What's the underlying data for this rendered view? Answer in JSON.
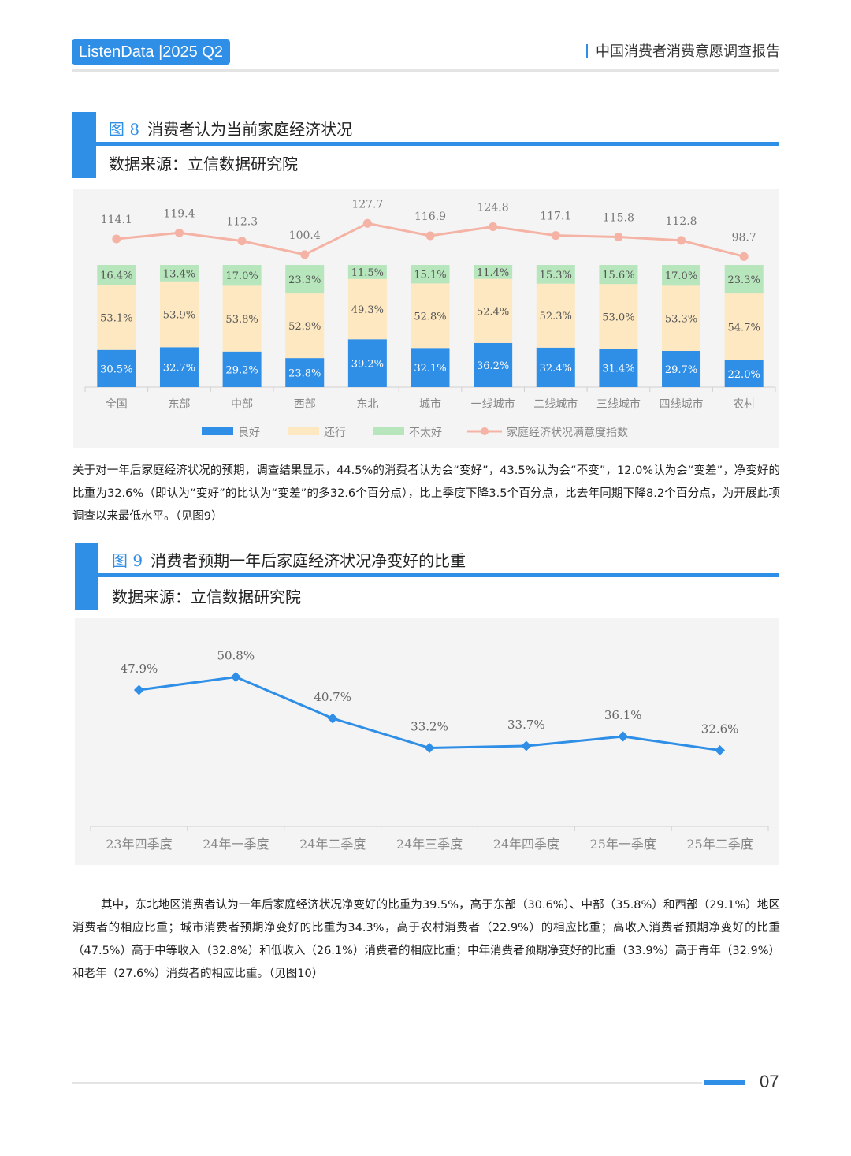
{
  "header": {
    "brand": "ListenData |2025 Q2",
    "report_title": "中国消费者消费意愿调查报告"
  },
  "figure8": {
    "label": "图 8",
    "title": "消费者认为当前家庭经济状况",
    "source": "数据来源：立信数据研究院"
  },
  "figure9": {
    "label": "图 9",
    "title": "消费者预期一年后家庭经济状况净变好的比重",
    "source": "数据来源：立信数据研究院"
  },
  "paragraph1": "关于对一年后家庭经济状况的预期，调查结果显示，44.5%的消费者认为会“变好”，43.5%认为会“不变”，12.0%认为会“变差”，净变好的比重为32.6%（即认为“变好”的比认为“变差”的多32.6个百分点），比上季度下降3.5个百分点，比去年同期下降8.2个百分点，为开展此项调查以来最低水平。（见图9）",
  "paragraph2": "其中，东北地区消费者认为一年后家庭经济状况净变好的比重为39.5%，高于东部（30.6%）、中部（35.8%）和西部（29.1%）地区消费者的相应比重；城市消费者预期净变好的比重为34.3%，高于农村消费者（22.9%）的相应比重；高收入消费者预期净变好的比重（47.5%）高于中等收入（32.8%）和低收入（26.1%）消费者的相应比重；中年消费者预期净变好的比重（33.9%）高于青年（32.9%）和老年（27.6%）消费者的相应比重。（见图10）",
  "footer": {
    "page": "07"
  },
  "colors": {
    "accent": "#2f8ee6",
    "good": "#2f8ee6",
    "ok": "#fde8c1",
    "bad": "#b7e6bd",
    "index_line": "#f4b3a4"
  },
  "chart_data": [
    {
      "type": "bar",
      "stacked": true,
      "categories": [
        "全国",
        "东部",
        "中部",
        "西部",
        "东北",
        "城市",
        "一线城市",
        "二线城市",
        "三线城市",
        "四线城市",
        "农村"
      ],
      "series": [
        {
          "name": "良好",
          "values": [
            30.5,
            32.7,
            29.2,
            23.8,
            39.2,
            32.1,
            36.2,
            32.4,
            31.4,
            29.7,
            22.0
          ],
          "labels": [
            "30.5%",
            "32.7%",
            "29.2%",
            "23.8%",
            "39.2%",
            "32.1%",
            "36.2%",
            "32.4%",
            "31.4%",
            "29.7%",
            "22.0%"
          ]
        },
        {
          "name": "还行",
          "values": [
            53.1,
            53.9,
            53.8,
            52.9,
            49.3,
            52.8,
            52.4,
            52.3,
            53.0,
            53.3,
            54.7
          ],
          "labels": [
            "53.1%",
            "53.9%",
            "53.8%",
            "52.9%",
            "49.3%",
            "52.8%",
            "52.4%",
            "52.3%",
            "53.0%",
            "53.3%",
            "54.7%"
          ]
        },
        {
          "name": "不太好",
          "values": [
            16.4,
            13.4,
            17.0,
            23.3,
            11.5,
            15.1,
            11.4,
            15.3,
            15.6,
            17.0,
            23.3
          ],
          "labels": [
            "16.4%",
            "13.4%",
            "17.0%",
            "23.3%",
            "11.5%",
            "15.1%",
            "11.4%",
            "15.3%",
            "15.6%",
            "17.0%",
            "23.3%"
          ]
        }
      ],
      "line": {
        "name": "家庭经济状况满意度指数",
        "values": [
          114.1,
          119.4,
          112.3,
          100.4,
          127.7,
          116.9,
          124.8,
          117.1,
          115.8,
          112.8,
          98.7
        ],
        "labels": [
          "114.1",
          "119.4",
          "112.3",
          "100.4",
          "127.7",
          "116.9",
          "124.8",
          "117.1",
          "115.8",
          "112.8",
          "98.7"
        ]
      },
      "legend_position": "bottom",
      "grid": false
    },
    {
      "type": "line",
      "categories": [
        "23年四季度",
        "24年一季度",
        "24年二季度",
        "24年三季度",
        "24年四季度",
        "25年一季度",
        "25年二季度"
      ],
      "values": [
        47.9,
        50.8,
        40.7,
        33.2,
        33.7,
        36.1,
        32.6
      ],
      "labels": [
        "47.9%",
        "50.8%",
        "40.7%",
        "33.2%",
        "33.7%",
        "36.1%",
        "32.6%"
      ],
      "grid": false
    }
  ]
}
